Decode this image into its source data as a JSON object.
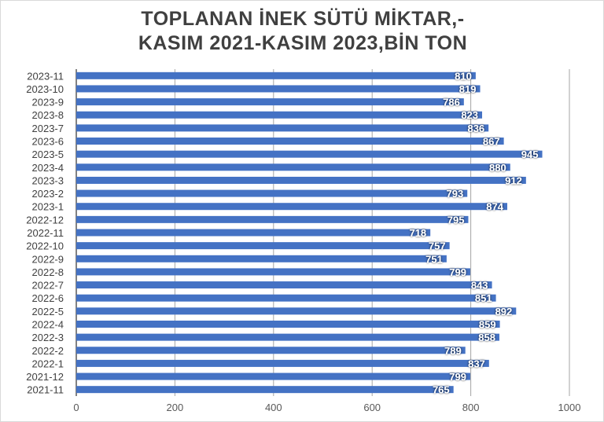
{
  "chart_data": {
    "type": "bar",
    "orientation": "horizontal",
    "title_lines": [
      "TOPLANAN İNEK SÜTÜ MİKTAR,-",
      "KASIM 2021-KASIM 2023,BİN TON"
    ],
    "categories": [
      "2023-11",
      "2023-10",
      "2023-9",
      "2023-8",
      "2023-7",
      "2023-6",
      "2023-5",
      "2023-4",
      "2023-3",
      "2023-2",
      "2023-1",
      "2022-12",
      "2022-11",
      "2022-10",
      "2022-9",
      "2022-8",
      "2022-7",
      "2022-6",
      "2022-5",
      "2022-4",
      "2022-3",
      "2022-2",
      "2022-1",
      "2021-12",
      "2021-11"
    ],
    "values": [
      810,
      819,
      786,
      823,
      836,
      867,
      945,
      880,
      912,
      793,
      874,
      795,
      718,
      757,
      751,
      799,
      843,
      851,
      892,
      859,
      858,
      789,
      837,
      799,
      765
    ],
    "xlim": [
      0,
      1000
    ],
    "xticks": [
      0,
      200,
      400,
      600,
      800,
      1000
    ],
    "grid": "vertical",
    "legend": "none",
    "bar_color": "#4472c4",
    "label_color": "#ffffff"
  }
}
